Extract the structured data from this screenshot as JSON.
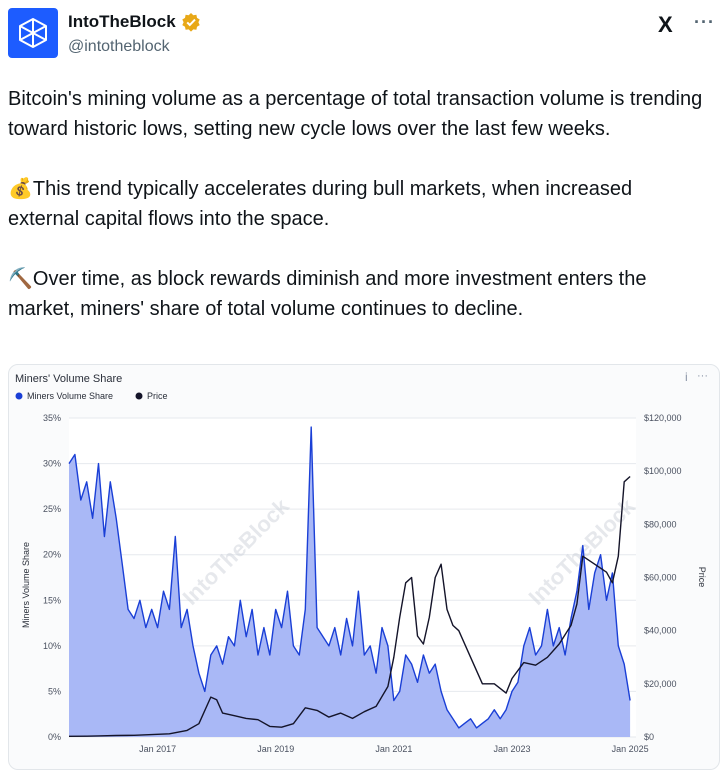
{
  "author": {
    "name": "IntoTheBlock",
    "handle": "@intotheblock",
    "avatar_icon": "intotheblock-cube-logo",
    "verified_icon": "gold-verified-badge",
    "brand_color": "#1d5cff"
  },
  "header_actions": {
    "logo_text": "X",
    "more_text": "···"
  },
  "tweet": {
    "paragraphs": [
      "Bitcoin's mining volume as a percentage of total transaction volume is trending toward historic lows, setting new cycle lows over the last few weeks.",
      "💰This trend typically accelerates during bull markets, when increased external capital flows into the space.",
      "⛏️Over time, as block rewards diminish and more investment enters the market, miners' share of total volume continues to decline."
    ]
  },
  "card": {
    "info_text": "i",
    "more_text": "···",
    "watermark_text": "IntoTheBlock"
  },
  "chart_data": {
    "type": "area",
    "title": "Miners' Volume Share",
    "legend_position": "top-left",
    "ylabel": "Miners Volume Share",
    "y2label": "Price",
    "ylim": [
      0,
      35
    ],
    "y2lim": [
      0,
      120000
    ],
    "xlim": [
      2015.5,
      2025.1
    ],
    "x_ticks": [
      "Jan 2017",
      "Jan 2019",
      "Jan 2021",
      "Jan 2023",
      "Jan 2025"
    ],
    "x_tick_values": [
      2017,
      2019,
      2021,
      2023,
      2025
    ],
    "y_ticks": [
      "0%",
      "5%",
      "10%",
      "15%",
      "20%",
      "25%",
      "30%",
      "35%"
    ],
    "y_tick_values": [
      0,
      5,
      10,
      15,
      20,
      25,
      30,
      35
    ],
    "y2_ticks": [
      "$0",
      "$20,000",
      "$40,000",
      "$60,000",
      "$80,000",
      "$100,000",
      "$120,000"
    ],
    "y2_tick_values": [
      0,
      20000,
      40000,
      60000,
      80000,
      100000,
      120000
    ],
    "grid": true,
    "series": [
      {
        "name": "Miners Volume Share",
        "axis": "left",
        "color": "#1a3fd6",
        "fill": "#a9b8f6",
        "x": [
          2015.5,
          2015.6,
          2015.7,
          2015.8,
          2015.9,
          2016.0,
          2016.1,
          2016.2,
          2016.3,
          2016.4,
          2016.5,
          2016.6,
          2016.7,
          2016.8,
          2016.9,
          2017.0,
          2017.1,
          2017.2,
          2017.3,
          2017.4,
          2017.5,
          2017.6,
          2017.7,
          2017.8,
          2017.9,
          2018.0,
          2018.1,
          2018.2,
          2018.3,
          2018.4,
          2018.5,
          2018.6,
          2018.7,
          2018.8,
          2018.9,
          2019.0,
          2019.1,
          2019.2,
          2019.3,
          2019.4,
          2019.5,
          2019.6,
          2019.7,
          2019.8,
          2019.9,
          2020.0,
          2020.1,
          2020.2,
          2020.3,
          2020.4,
          2020.5,
          2020.6,
          2020.7,
          2020.8,
          2020.9,
          2021.0,
          2021.1,
          2021.2,
          2021.3,
          2021.4,
          2021.5,
          2021.6,
          2021.7,
          2021.8,
          2021.9,
          2022.0,
          2022.1,
          2022.2,
          2022.3,
          2022.4,
          2022.5,
          2022.6,
          2022.7,
          2022.8,
          2022.9,
          2023.0,
          2023.1,
          2023.2,
          2023.3,
          2023.4,
          2023.5,
          2023.6,
          2023.7,
          2023.8,
          2023.9,
          2024.0,
          2024.1,
          2024.2,
          2024.3,
          2024.4,
          2024.5,
          2024.6,
          2024.7,
          2024.8,
          2024.9,
          2025.0
        ],
        "values": [
          30,
          31,
          26,
          28,
          24,
          30,
          22,
          28,
          24,
          19,
          14,
          13,
          15,
          12,
          14,
          12,
          16,
          14,
          22,
          12,
          14,
          10,
          7,
          5,
          9,
          10,
          8,
          11,
          10,
          15,
          11,
          14,
          9,
          12,
          9,
          14,
          12,
          16,
          10,
          9,
          14,
          34,
          12,
          11,
          10,
          12,
          9,
          13,
          10,
          16,
          9,
          10,
          7,
          12,
          10,
          4,
          5,
          9,
          8,
          6,
          9,
          7,
          8,
          5,
          3,
          2,
          1,
          1.5,
          2,
          1,
          1.5,
          2,
          3,
          2,
          3,
          5,
          6,
          10,
          12,
          9,
          10,
          14,
          10,
          12,
          9,
          13,
          16,
          21,
          14,
          18,
          20,
          15,
          18,
          10,
          8,
          4
        ]
      },
      {
        "name": "Price",
        "axis": "right",
        "color": "#141429",
        "x": [
          2015.5,
          2015.8,
          2016.0,
          2016.3,
          2016.6,
          2016.9,
          2017.2,
          2017.5,
          2017.7,
          2017.9,
          2018.0,
          2018.1,
          2018.3,
          2018.5,
          2018.7,
          2018.9,
          2019.1,
          2019.3,
          2019.5,
          2019.7,
          2019.9,
          2020.1,
          2020.3,
          2020.5,
          2020.7,
          2020.9,
          2021.0,
          2021.1,
          2021.2,
          2021.3,
          2021.4,
          2021.5,
          2021.6,
          2021.7,
          2021.8,
          2021.9,
          2022.0,
          2022.1,
          2022.3,
          2022.5,
          2022.7,
          2022.9,
          2023.0,
          2023.2,
          2023.4,
          2023.6,
          2023.8,
          2024.0,
          2024.1,
          2024.2,
          2024.4,
          2024.6,
          2024.7,
          2024.8,
          2024.9,
          2025.0
        ],
        "values": [
          250,
          300,
          430,
          550,
          650,
          900,
          1200,
          2500,
          5000,
          15000,
          14000,
          9000,
          8000,
          7000,
          6500,
          4000,
          3700,
          5000,
          11000,
          10000,
          7500,
          9000,
          7000,
          9500,
          11500,
          19000,
          30000,
          45000,
          58000,
          60000,
          38000,
          35000,
          45000,
          60000,
          65000,
          48000,
          42000,
          40000,
          30000,
          20000,
          20000,
          16500,
          22000,
          28000,
          27000,
          30000,
          35000,
          42000,
          50000,
          68000,
          65000,
          62000,
          58000,
          68000,
          96000,
          98000
        ]
      }
    ]
  }
}
